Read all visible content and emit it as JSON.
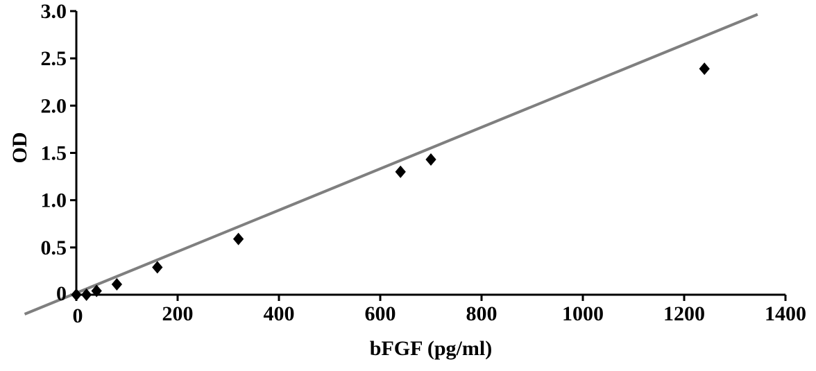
{
  "colors": {
    "axis": "#000000",
    "points": "#000000",
    "trendline": "#7f7f7f"
  },
  "chart_data": {
    "type": "scatter",
    "title": "",
    "xlabel": "bFGF (pg/ml)",
    "ylabel": "OD",
    "xlim": [
      0,
      1400
    ],
    "ylim": [
      0,
      3.0
    ],
    "x_ticks": [
      0,
      200,
      400,
      600,
      800,
      1000,
      1200,
      1400
    ],
    "x_tick_labels": [
      "0",
      "200",
      "400",
      "600",
      "800",
      "1000",
      "1200",
      "1400"
    ],
    "y_ticks": [
      0,
      0.5,
      1.0,
      1.5,
      2.0,
      2.5,
      3.0
    ],
    "y_tick_labels": [
      "0",
      "0.5",
      "1.0",
      "1.5",
      "2.0",
      "2.5",
      "3.0"
    ],
    "grid": false,
    "legend": "none",
    "marker": "diamond",
    "series": [
      {
        "points": [
          {
            "x": 0,
            "y": 0.0
          },
          {
            "x": 20,
            "y": 0.0
          },
          {
            "x": 40,
            "y": 0.04
          },
          {
            "x": 80,
            "y": 0.11
          },
          {
            "x": 160,
            "y": 0.29
          },
          {
            "x": 320,
            "y": 0.59
          },
          {
            "x": 640,
            "y": 1.3
          },
          {
            "x": 700,
            "y": 1.43
          },
          {
            "x": 1240,
            "y": 2.39
          }
        ]
      }
    ],
    "trendline": {
      "type": "linear",
      "slope": 0.002191,
      "intercept": 0.018,
      "x_range": [
        -102,
        1345
      ]
    }
  }
}
